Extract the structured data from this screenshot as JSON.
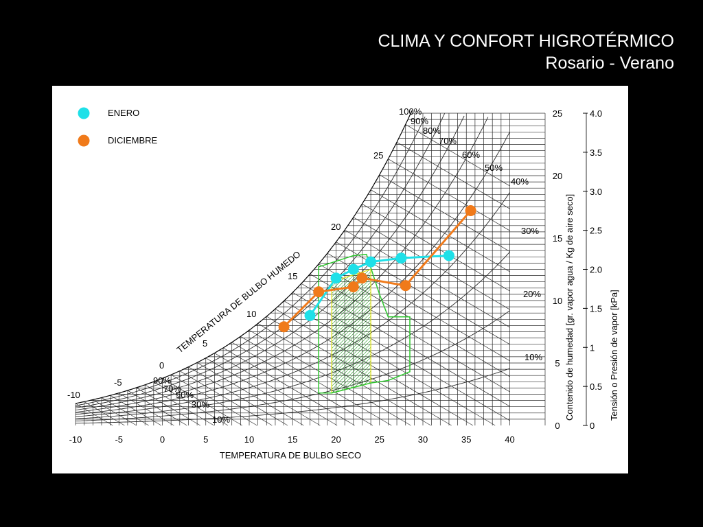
{
  "header": {
    "title": "CLIMA Y CONFORT HIGROTÉRMICO",
    "subtitle": "Rosario - Verano"
  },
  "colors": {
    "background": "#000000",
    "panel": "#ffffff",
    "grid": "#2a2a2a",
    "enero": "#1fe0e8",
    "diciembre": "#f07a1a",
    "comfort_green": "#2fc82f",
    "comfort_yellow": "#e0e020",
    "legend_text": "#1fe0e8"
  },
  "legend": [
    {
      "label": "ENERO",
      "color": "#1fe0e8"
    },
    {
      "label": "DICIEMBRE",
      "color": "#f07a1a"
    }
  ],
  "chart_data": {
    "type": "scatter",
    "chart_kind": "psychrometric",
    "xlabel": "TEMPERATURA DE BULBO SECO",
    "ylabel": "Contenido de humedad [gr. vapor agua / Kg de aire seco]",
    "y2label": "Tensión o Presión de vapor [kPa]",
    "wetbulb_label": "TEMPERATURA DE BULBO HUMEDO",
    "xlim": [
      -12,
      43
    ],
    "ylim": [
      0,
      25
    ],
    "x_ticks": [
      "-10",
      "-5",
      "0",
      "5",
      "10",
      "15",
      "20",
      "25",
      "30",
      "35",
      "40"
    ],
    "x_tick_values": [
      -10,
      -5,
      0,
      5,
      10,
      15,
      20,
      25,
      30,
      35,
      40
    ],
    "y_ticks": [
      "0",
      "5",
      "10",
      "15",
      "20",
      "25"
    ],
    "y_tick_values": [
      0,
      5,
      10,
      15,
      20,
      25
    ],
    "y2_ticks": [
      "0",
      "0.5",
      "1",
      "1.5",
      "2.0",
      "2.5",
      "3.0",
      "3.5",
      "4.0"
    ],
    "y2_tick_values": [
      0,
      0.5,
      1,
      1.5,
      2.0,
      2.5,
      3.0,
      3.5,
      4.0
    ],
    "rh_labels": [
      "100%",
      "90%",
      "80%",
      "70%",
      "60%",
      "50%",
      "40%",
      "30%",
      "20%",
      "10%"
    ],
    "rh_values": [
      100,
      90,
      80,
      70,
      60,
      50,
      40,
      30,
      20,
      10
    ],
    "rh_labels_low": [
      "90%",
      "70%",
      "50%",
      "30%",
      "10%"
    ],
    "wetbulb_labels": [
      "-10",
      "-5",
      "0",
      "5",
      "10",
      "15",
      "20",
      "25"
    ],
    "wetbulb_values": [
      -10,
      -5,
      0,
      5,
      10,
      15,
      20,
      25
    ],
    "series": [
      {
        "name": "ENERO",
        "color": "#1fe0e8",
        "points": [
          [
            17,
            8.8
          ],
          [
            20,
            11.8
          ],
          [
            22,
            12.5
          ],
          [
            24,
            13.1
          ],
          [
            27.5,
            13.4
          ],
          [
            33,
            13.6
          ]
        ]
      },
      {
        "name": "DICIEMBRE",
        "color": "#f07a1a",
        "points": [
          [
            14,
            7.9
          ],
          [
            18,
            10.7
          ],
          [
            22,
            11.1
          ],
          [
            23,
            11.8
          ],
          [
            28,
            11.2
          ],
          [
            35.5,
            17.2
          ]
        ]
      }
    ],
    "comfort_zone_green": [
      [
        18,
        2.6
      ],
      [
        18,
        12.7
      ],
      [
        22,
        13.6
      ],
      [
        23.5,
        13.7
      ],
      [
        25,
        10.5
      ],
      [
        26,
        8.7
      ],
      [
        28.5,
        8.7
      ],
      [
        28.5,
        4.3
      ],
      [
        26,
        3.6
      ],
      [
        24,
        3.4
      ],
      [
        19.5,
        2.6
      ]
    ],
    "comfort_zone_yellow": [
      [
        19.5,
        2.6
      ],
      [
        24,
        3.4
      ],
      [
        24,
        12.5
      ],
      [
        19.5,
        11.5
      ]
    ]
  }
}
